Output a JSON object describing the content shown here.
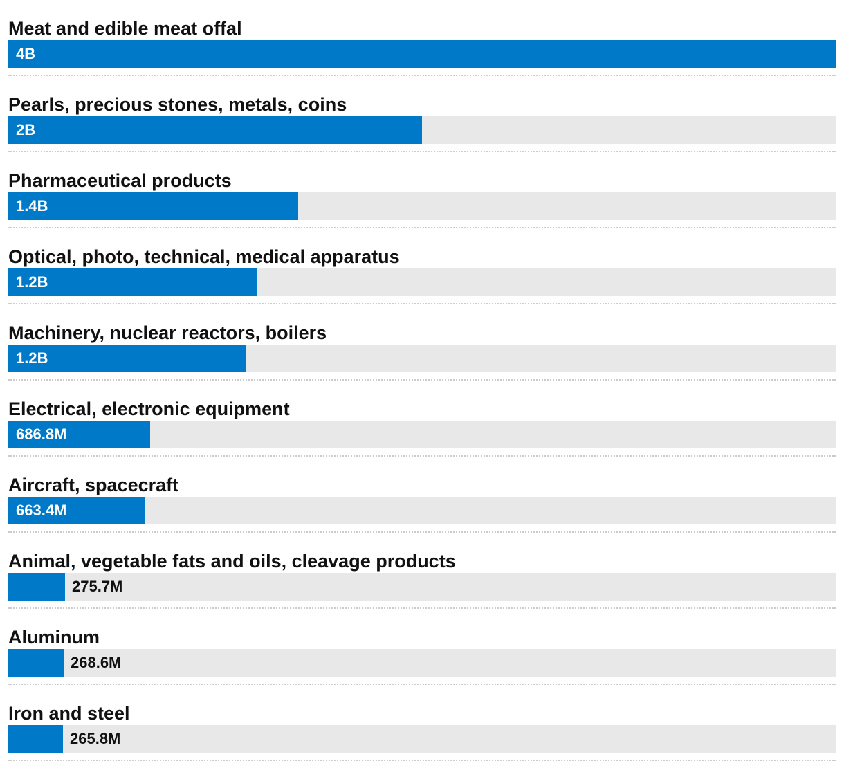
{
  "chart_data": {
    "type": "bar",
    "orientation": "horizontal",
    "categories": [
      "Meat and edible meat offal",
      "Pearls, precious stones, metals, coins",
      "Pharmaceutical products",
      "Optical, photo, technical, medical apparatus",
      "Machinery, nuclear reactors, boilers",
      "Electrical, electronic equipment",
      "Aircraft, spacecraft",
      "Animal, vegetable fats and oils, cleavage products",
      "Aluminum",
      "Iron and steel"
    ],
    "values": [
      4000000000,
      2000000000,
      1400000000,
      1200000000,
      1150000000,
      686800000,
      663400000,
      275700000,
      268600000,
      265800000
    ],
    "value_labels": [
      "4B",
      "2B",
      "1.4B",
      "1.2B",
      "1.2B",
      "686.8M",
      "663.4M",
      "275.7M",
      "268.6M",
      "265.8M"
    ],
    "xlim": [
      0,
      4000000000
    ],
    "colors": {
      "bar": "#0079c8",
      "track": "#e8e8e8"
    }
  }
}
